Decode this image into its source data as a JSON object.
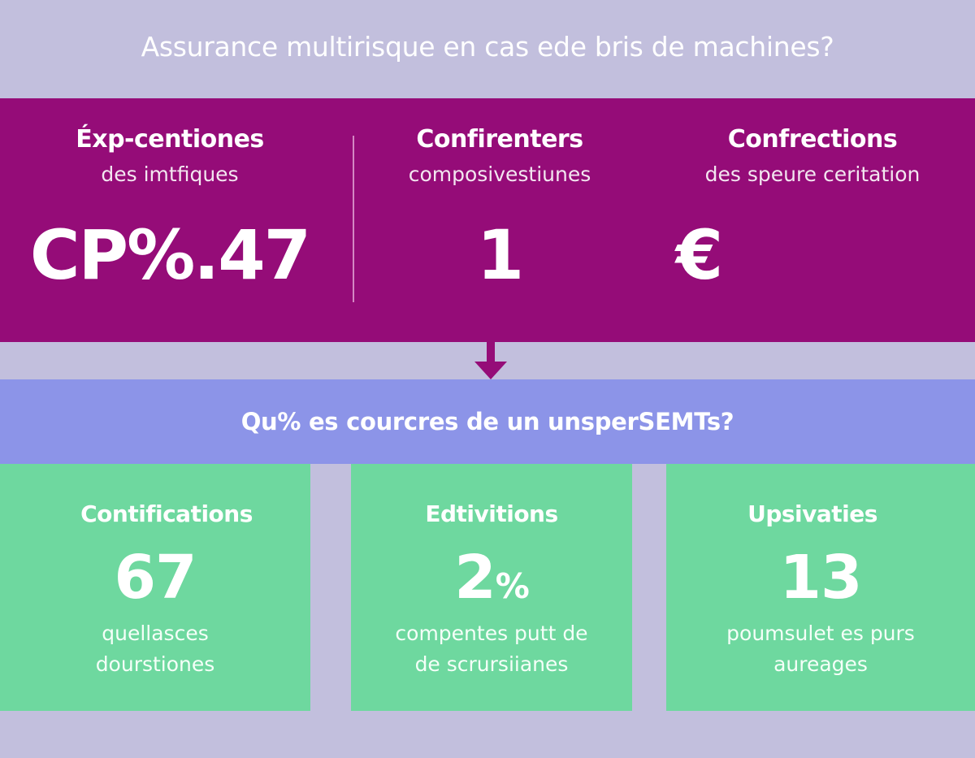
{
  "title": "Assurance multirisque en cas ede bris de machines?",
  "colors": {
    "background": "#c2bfdd",
    "top_band": "#950c78",
    "question_band": "#8c94e8",
    "cards": "#6ed89f",
    "text": "#ffffff"
  },
  "top_stats": [
    {
      "heading": "Éxp-centiones",
      "subheading": "des imtfiques",
      "value": "CP%.47"
    },
    {
      "heading": "Confirenters",
      "subheading": "composivestiunes",
      "value": "1"
    },
    {
      "heading": "Confrections",
      "subheading": "des speure ceritation",
      "value": "€"
    }
  ],
  "arrow_icon": "arrow-down-icon",
  "question": "Qu% es courcres de un unsperSEMTs?",
  "cards": [
    {
      "heading": "Contifications",
      "value": "67",
      "value_suffix": "",
      "description_line1": "quellasces",
      "description_line2": "dourstiones"
    },
    {
      "heading": "Edtivitions",
      "value": "2",
      "value_suffix": "%",
      "description_line1": "compentes putt de",
      "description_line2": "de scrursiianes"
    },
    {
      "heading": "Upsivaties",
      "value": "13",
      "value_suffix": "",
      "description_line1": "poumsulet es purs",
      "description_line2": "aureages"
    }
  ]
}
